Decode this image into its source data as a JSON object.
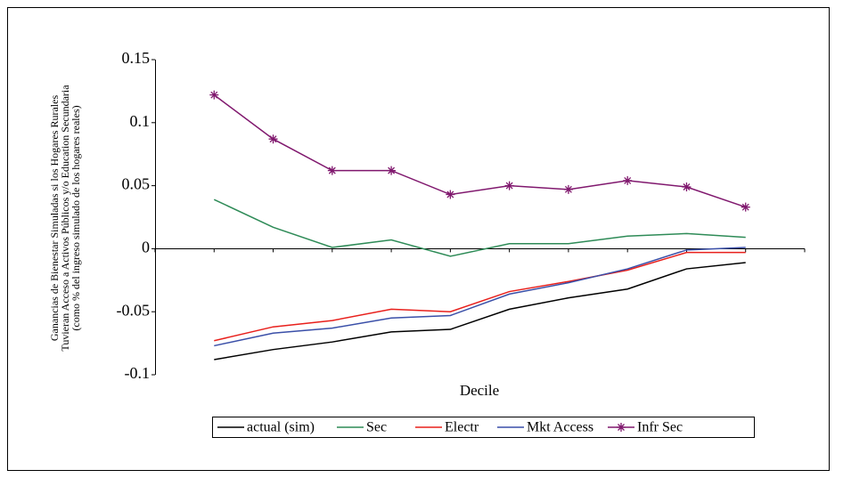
{
  "chart_data": {
    "type": "line",
    "ylabel": [
      "Ganancias de Bienestar Simuladas si los Hogares Rurales",
      "Tuvieran Acceso a Activos Públicos y/o Education Secundaria",
      "(como % del ingreso simulado de los hogares reales)"
    ],
    "xlabel": "Decile",
    "categories": [
      null,
      null,
      null,
      null,
      null,
      null,
      null,
      null,
      null,
      null
    ],
    "ylim": [
      -0.1,
      0.15
    ],
    "yticks": [
      0.15,
      0.1,
      0.05,
      0,
      -0.05,
      -0.1
    ],
    "legend": "bottom",
    "series": [
      {
        "name": "actual (sim)",
        "color": "#000000",
        "values": [
          -0.088,
          -0.08,
          -0.074,
          -0.066,
          -0.064,
          -0.048,
          -0.039,
          -0.032,
          -0.016,
          -0.011
        ]
      },
      {
        "name": "Sec",
        "color": "#2e8b57",
        "values": [
          0.039,
          0.017,
          0.001,
          0.007,
          -0.006,
          0.004,
          0.004,
          0.01,
          0.012,
          0.009
        ]
      },
      {
        "name": "Electr",
        "color": "#e8201c",
        "values": [
          -0.073,
          -0.062,
          -0.057,
          -0.048,
          -0.05,
          -0.034,
          -0.026,
          -0.017,
          -0.003,
          -0.003
        ]
      },
      {
        "name": "Mkt Access",
        "color": "#3a4fa8",
        "values": [
          -0.077,
          -0.067,
          -0.063,
          -0.055,
          -0.053,
          -0.036,
          -0.027,
          -0.016,
          -0.001,
          0.001
        ]
      },
      {
        "name": "Infr Sec",
        "color": "#80186e",
        "marker": "star",
        "values": [
          0.122,
          0.087,
          0.062,
          0.062,
          0.043,
          0.05,
          0.047,
          0.054,
          0.049,
          0.033
        ]
      }
    ]
  }
}
